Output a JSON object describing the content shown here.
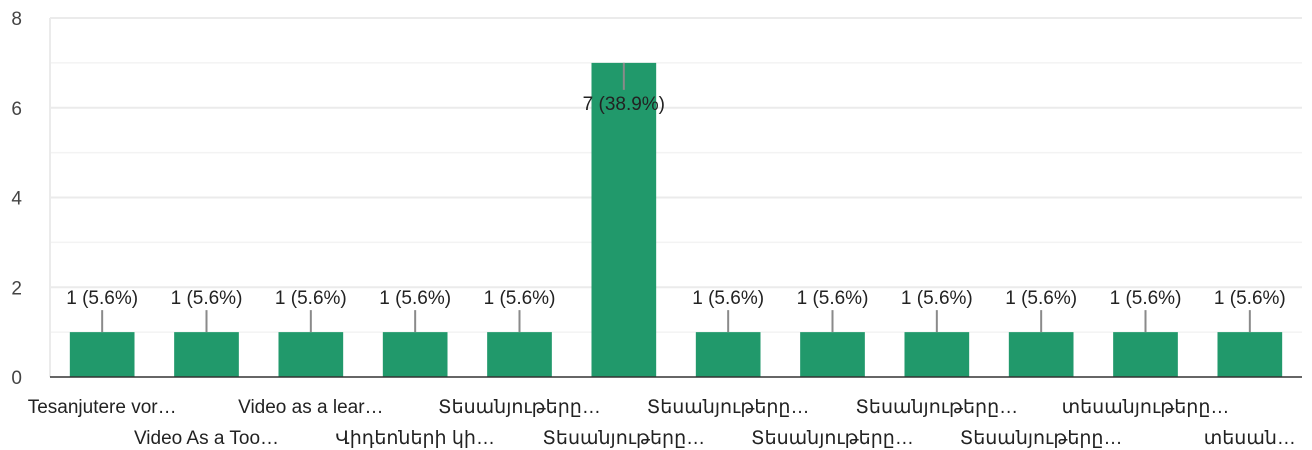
{
  "chart_data": {
    "type": "bar",
    "categories": [
      "Tesanjutere vor…",
      "Video As a Too…",
      "Video as a lear…",
      "Վիդեոների կի…",
      "Տեսանյութերը…",
      "Տեսանյութերը…",
      "Տեսանյութերը…",
      "Տեսանյութերը…",
      "Տեսանյութերը…",
      "Տեսանյութերը…",
      "տեսանյութերը…",
      "տեսան…"
    ],
    "values": [
      1,
      1,
      1,
      1,
      1,
      7,
      1,
      1,
      1,
      1,
      1,
      1
    ],
    "data_labels": [
      "1 (5.6%)",
      "1 (5.6%)",
      "1 (5.6%)",
      "1 (5.6%)",
      "1 (5.6%)",
      "7 (38.9%)",
      "1 (5.6%)",
      "1 (5.6%)",
      "1 (5.6%)",
      "1 (5.6%)",
      "1 (5.6%)",
      "1 (5.6%)"
    ],
    "y_ticks": [
      "0",
      "2",
      "4",
      "6",
      "8"
    ],
    "ylim": [
      0,
      8
    ],
    "grid": true,
    "legend": "none",
    "bar_color": "#21996b"
  }
}
